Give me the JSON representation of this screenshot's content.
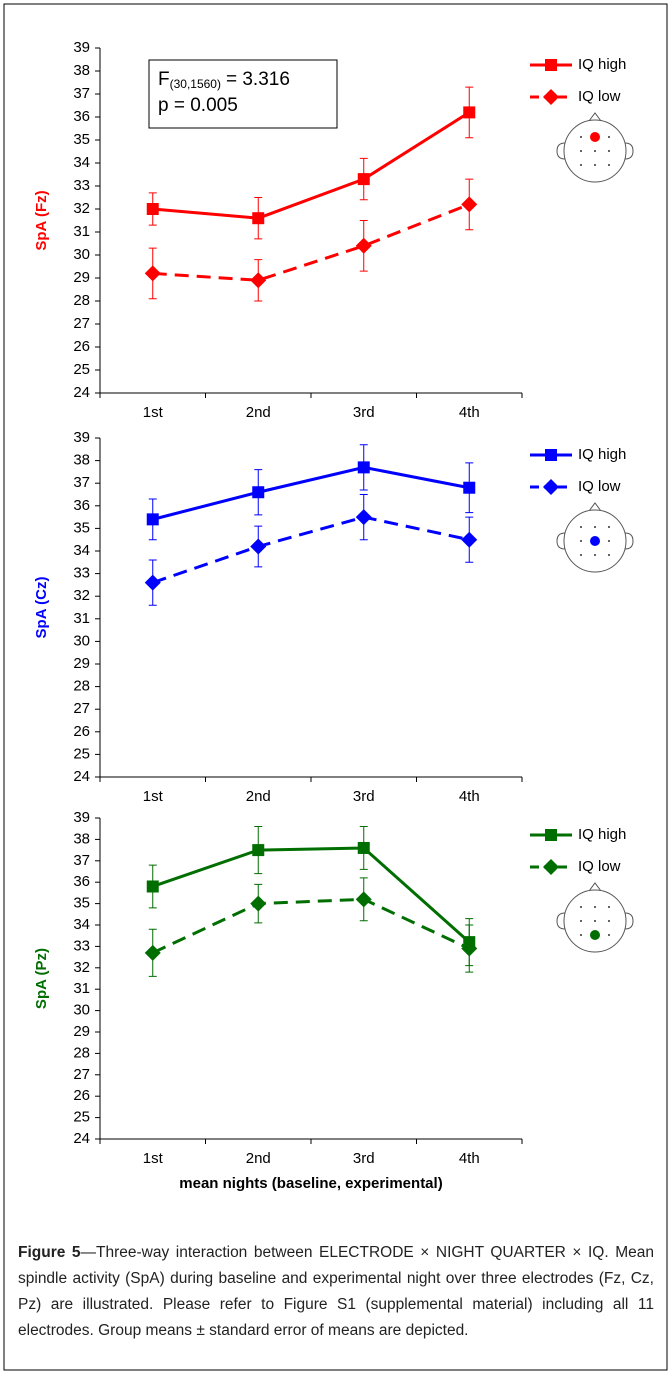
{
  "chart_data": [
    {
      "type": "line",
      "ylabel": "SpA (Fz)",
      "color": "#ff0000",
      "categories": [
        "1st",
        "2nd",
        "3rd",
        "4th"
      ],
      "ylim": [
        24,
        39
      ],
      "yticks": [
        24,
        25,
        26,
        27,
        28,
        29,
        30,
        31,
        32,
        33,
        34,
        35,
        36,
        37,
        38,
        39
      ],
      "annotation": {
        "f": "F",
        "subscript": "(30,1560)",
        "statistic": "= 3.316",
        "p": "p = 0.005"
      },
      "series": [
        {
          "name": "IQ high",
          "color": "#ff0000",
          "marker": "square",
          "linestyle": "solid",
          "values": [
            32.0,
            31.6,
            33.3,
            36.2
          ],
          "errors": [
            0.7,
            0.9,
            0.9,
            1.1
          ]
        },
        {
          "name": "IQ low",
          "color": "#ff0000",
          "marker": "diamond",
          "linestyle": "dashed",
          "values": [
            29.2,
            28.9,
            30.4,
            32.2
          ],
          "errors": [
            1.1,
            0.9,
            1.1,
            1.1
          ]
        }
      ]
    },
    {
      "type": "line",
      "ylabel": "SpA (Cz)",
      "color": "#0000ff",
      "categories": [
        "1st",
        "2nd",
        "3rd",
        "4th"
      ],
      "ylim": [
        24,
        39
      ],
      "yticks": [
        24,
        25,
        26,
        27,
        28,
        29,
        30,
        31,
        32,
        33,
        34,
        35,
        36,
        37,
        38,
        39
      ],
      "series": [
        {
          "name": "IQ high",
          "color": "#0000ff",
          "marker": "square",
          "linestyle": "solid",
          "values": [
            35.4,
            36.6,
            37.7,
            36.8
          ],
          "errors": [
            0.9,
            1.0,
            1.0,
            1.1
          ]
        },
        {
          "name": "IQ low",
          "color": "#0000ff",
          "marker": "diamond",
          "linestyle": "dashed",
          "values": [
            32.6,
            34.2,
            35.5,
            34.5
          ],
          "errors": [
            1.0,
            0.9,
            1.0,
            1.0
          ]
        }
      ]
    },
    {
      "type": "line",
      "ylabel": "SpA (Pz)",
      "color": "#006e00",
      "xlabel": "mean nights (baseline, experimental)",
      "categories": [
        "1st",
        "2nd",
        "3rd",
        "4th"
      ],
      "ylim": [
        24,
        39
      ],
      "yticks": [
        24,
        25,
        26,
        27,
        28,
        29,
        30,
        31,
        32,
        33,
        34,
        35,
        36,
        37,
        38,
        39
      ],
      "series": [
        {
          "name": "IQ high",
          "color": "#006e00",
          "marker": "square",
          "linestyle": "solid",
          "values": [
            35.8,
            37.5,
            37.6,
            33.2
          ],
          "errors": [
            1.0,
            1.1,
            1.0,
            1.1
          ]
        },
        {
          "name": "IQ low",
          "color": "#006e00",
          "marker": "diamond",
          "linestyle": "dashed",
          "values": [
            32.7,
            35.0,
            35.2,
            32.9
          ],
          "errors": [
            1.1,
            0.9,
            1.0,
            1.1
          ]
        }
      ]
    }
  ],
  "caption": {
    "label": "Figure 5",
    "text": "—Three-way interaction between ELECTRODE × NIGHT QUARTER × IQ. Mean spindle activity (SpA) during baseline and experimental night over three electrodes (Fz, Cz, Pz) are illustrated. Please refer to Figure S1 (supplemental material) including all 11 electrodes. Group means ± standard error of means are depicted."
  }
}
